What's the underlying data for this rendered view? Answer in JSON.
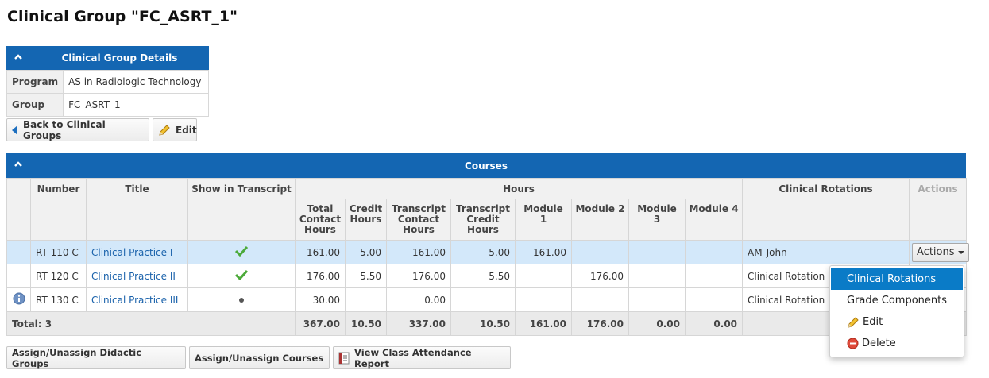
{
  "page": {
    "title": "Clinical Group \"FC_ASRT_1\""
  },
  "details": {
    "header": "Clinical Group Details",
    "rows": [
      {
        "label": "Program",
        "value": "AS in Radiologic Technology"
      },
      {
        "label": "Group",
        "value": "FC_ASRT_1"
      }
    ]
  },
  "toolbar": {
    "back_label": "Back to Clinical Groups",
    "edit_label": "Edit"
  },
  "courses": {
    "header": "Courses",
    "columns": {
      "number": "Number",
      "title": "Title",
      "show_transcript": "Show in Transcript",
      "hours": "Hours",
      "total_contact": "Total Contact Hours",
      "credit": "Credit Hours",
      "transcript_contact": "Transcript Contact Hours",
      "transcript_credit": "Transcript Credit Hours",
      "module1": "Module 1",
      "module2": "Module 2",
      "module3": "Module 3",
      "module4": "Module 4",
      "rotations": "Clinical Rotations",
      "actions": "Actions"
    },
    "rows": [
      {
        "number": "RT 110 C",
        "title": "Clinical Practice I",
        "show": "check",
        "total_contact": "161.00",
        "credit": "5.00",
        "transcript_contact": "161.00",
        "transcript_credit": "5.00",
        "module1": "161.00",
        "module2": "",
        "module3": "",
        "module4": "",
        "rotation": "AM-John",
        "action_label": "Actions"
      },
      {
        "number": "RT 120 C",
        "title": "Clinical Practice II",
        "show": "check",
        "total_contact": "176.00",
        "credit": "5.50",
        "transcript_contact": "176.00",
        "transcript_credit": "5.50",
        "module1": "",
        "module2": "176.00",
        "module3": "",
        "module4": "",
        "rotation": "Clinical Rotation"
      },
      {
        "number": "RT 130 C",
        "title": "Clinical Practice III",
        "show": "dot",
        "total_contact": "30.00",
        "credit": "",
        "transcript_contact": "0.00",
        "transcript_credit": "",
        "module1": "",
        "module2": "",
        "module3": "",
        "module4": "",
        "rotation": "Clinical Rotation"
      }
    ],
    "total": {
      "label": "Total: 3",
      "total_contact": "367.00",
      "credit": "10.50",
      "transcript_contact": "337.00",
      "transcript_credit": "10.50",
      "module1": "161.00",
      "module2": "176.00",
      "module3": "0.00",
      "module4": "0.00"
    }
  },
  "actions_menu": {
    "items": [
      "Clinical Rotations",
      "Grade Components",
      "Edit",
      "Delete"
    ]
  },
  "footer": {
    "assign_didactic": "Assign/Unassign Didactic Groups",
    "assign_courses": "Assign/Unassign Courses",
    "attendance_report": "View Class Attendance Report"
  },
  "colors": {
    "header_blue": "#1466b2",
    "selected_row": "#d3e8fa",
    "menu_active": "#0a7bc7",
    "link": "#1a62ab"
  },
  "icons": [
    "chevron-up-icon",
    "back-arrow-icon",
    "pencil-icon",
    "check-icon",
    "info-icon",
    "delete-icon",
    "report-icon"
  ]
}
